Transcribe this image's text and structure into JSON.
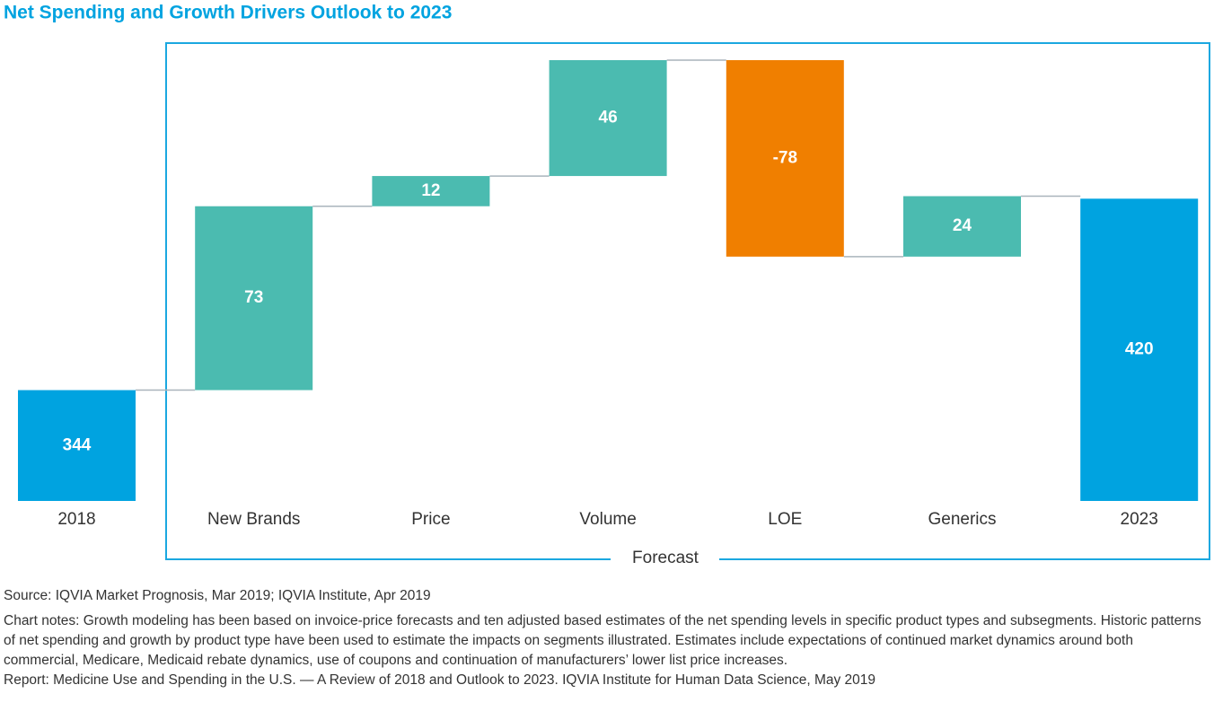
{
  "chart_data": {
    "type": "waterfall",
    "title": "Net Spending and Growth Drivers Outlook to 2023",
    "categories": [
      "2018",
      "New Brands",
      "Price",
      "Volume",
      "LOE",
      "Generics",
      "2023"
    ],
    "values": [
      344,
      73,
      12,
      46,
      -78,
      24,
      420
    ],
    "is_total": [
      true,
      false,
      false,
      false,
      false,
      false,
      true
    ],
    "colors": [
      "#00a3e0",
      "#4bbbb0",
      "#4bbbb0",
      "#4bbbb0",
      "#f07f00",
      "#4bbbb0",
      "#00a3e0"
    ],
    "ylim": [
      300,
      475
    ],
    "bracket_label": "Forecast",
    "notes": {
      "source": "Source: IQVIA Market Prognosis, Mar 2019; IQVIA Institute, Apr 2019",
      "chart_notes": "Chart notes: Growth modeling has been based on invoice-price forecasts and ten adjusted based estimates of the net spending levels in specific product types and subsegments. Historic patterns of net spending and growth by product type have been used to estimate the impacts on segments illustrated. Estimates include expectations of continued market dynamics around both commercial, Medicare, Medicaid rebate dynamics, use of coupons and continuation of manufacturers’ lower list price increases.",
      "report": "Report: Medicine Use and Spending in the U.S. — A Review of 2018 and Outlook to 2023. IQVIA Institute for Human Data Science, May 2019"
    }
  }
}
